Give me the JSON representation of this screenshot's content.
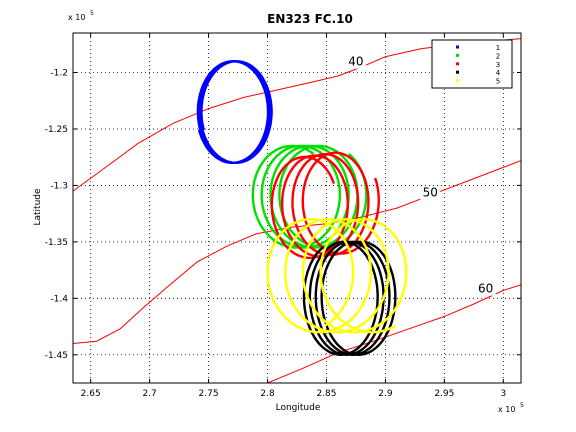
{
  "chart_data": {
    "type": "line",
    "title": "EN323 FC.10",
    "xlabel": "Longitude",
    "ylabel": "Latitude",
    "x_exponent": "x 10",
    "x_exponent_power": "5",
    "y_exponent": "x 10",
    "y_exponent_power": "5",
    "xlim": [
      2.635,
      3.015
    ],
    "ylim": [
      -1.475,
      -1.165
    ],
    "x_ticks": [
      2.65,
      2.7,
      2.75,
      2.8,
      2.85,
      2.9,
      2.95,
      3.0
    ],
    "x_tick_labels": [
      "2.65",
      "2.7",
      "2.75",
      "2.8",
      "2.85",
      "2.9",
      "2.95",
      "3"
    ],
    "y_ticks": [
      -1.45,
      -1.4,
      -1.35,
      -1.3,
      -1.25,
      -1.2
    ],
    "y_tick_labels": [
      "-1.45",
      "-1.4",
      "-1.35",
      "-1.3",
      "-1.25",
      "-1.2"
    ],
    "grid": true,
    "legend_position": "top-right",
    "contour_color": "#ff0000",
    "contours": [
      {
        "label": "40",
        "label_pos": [
          2.875,
          -1.194
        ],
        "points": [
          [
            2.635,
            -1.305
          ],
          [
            2.66,
            -1.286
          ],
          [
            2.69,
            -1.263
          ],
          [
            2.72,
            -1.245
          ],
          [
            2.75,
            -1.232
          ],
          [
            2.78,
            -1.222
          ],
          [
            2.81,
            -1.215
          ],
          [
            2.84,
            -1.208
          ],
          [
            2.86,
            -1.203
          ],
          [
            2.88,
            -1.195
          ],
          [
            2.9,
            -1.186
          ],
          [
            2.93,
            -1.179
          ],
          [
            2.96,
            -1.175
          ],
          [
            3.015,
            -1.17
          ]
        ]
      },
      {
        "label": "50",
        "label_pos": [
          2.938,
          -1.31
        ],
        "points": [
          [
            2.635,
            -1.44
          ],
          [
            2.655,
            -1.438
          ],
          [
            2.675,
            -1.427
          ],
          [
            2.695,
            -1.408
          ],
          [
            2.715,
            -1.39
          ],
          [
            2.74,
            -1.368
          ],
          [
            2.765,
            -1.354
          ],
          [
            2.79,
            -1.343
          ],
          [
            2.82,
            -1.337
          ],
          [
            2.85,
            -1.334
          ],
          [
            2.88,
            -1.328
          ],
          [
            2.91,
            -1.32
          ],
          [
            2.935,
            -1.31
          ],
          [
            2.96,
            -1.3
          ],
          [
            2.99,
            -1.288
          ],
          [
            3.015,
            -1.278
          ]
        ]
      },
      {
        "label": "60",
        "label_pos": [
          2.985,
          -1.395
        ],
        "points": [
          [
            2.8,
            -1.475
          ],
          [
            2.83,
            -1.462
          ],
          [
            2.86,
            -1.448
          ],
          [
            2.89,
            -1.438
          ],
          [
            2.92,
            -1.427
          ],
          [
            2.95,
            -1.416
          ],
          [
            2.975,
            -1.405
          ],
          [
            3.0,
            -1.393
          ],
          [
            3.015,
            -1.388
          ]
        ]
      }
    ],
    "series": [
      {
        "name": "1",
        "color": "#0000ff",
        "loops": [
          {
            "cx": 2.77,
            "cy": -1.235,
            "rx": 0.03,
            "ry": 0.045,
            "drift_x": 0.004,
            "drift_y": 0.0,
            "turns": 4,
            "start": 3.5
          }
        ]
      },
      {
        "name": "2",
        "color": "#00e000",
        "loops": [
          {
            "cx": 2.82,
            "cy": -1.31,
            "rx": 0.035,
            "ry": 0.045,
            "drift_x": 0.03,
            "drift_y": 0.0,
            "turns": 4,
            "start": 1.0
          }
        ]
      },
      {
        "name": "3",
        "color": "#ff0000",
        "loops": [
          {
            "cx": 2.83,
            "cy": -1.32,
            "rx": 0.03,
            "ry": 0.045,
            "drift_x": 0.035,
            "drift_y": 0.005,
            "turns": 4,
            "start": 0.5
          }
        ]
      },
      {
        "name": "4",
        "color": "#000000",
        "loops": [
          {
            "cx": 2.86,
            "cy": -1.4,
            "rx": 0.03,
            "ry": 0.05,
            "drift_x": 0.02,
            "drift_y": 0.0,
            "turns": 4,
            "start": 2.0
          }
        ]
      },
      {
        "name": "5",
        "color": "#ffff00",
        "loops": [
          {
            "cx": 2.83,
            "cy": -1.38,
            "rx": 0.04,
            "ry": 0.05,
            "drift_x": 0.06,
            "drift_y": 0.0,
            "turns": 4,
            "start": 5.2
          }
        ]
      }
    ]
  }
}
